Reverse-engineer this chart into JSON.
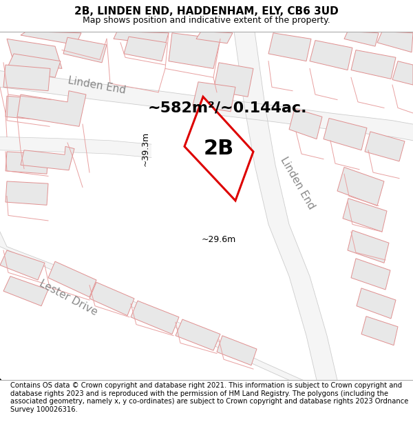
{
  "title_line1": "2B, LINDEN END, HADDENHAM, ELY, CB6 3UD",
  "title_line2": "Map shows position and indicative extent of the property.",
  "footer_text": "Contains OS data © Crown copyright and database right 2021. This information is subject to Crown copyright and database rights 2023 and is reproduced with the permission of HM Land Registry. The polygons (including the associated geometry, namely x, y co-ordinates) are subject to Crown copyright and database rights 2023 Ordnance Survey 100026316.",
  "area_label": "~582m²/~0.144ac.",
  "property_label": "2B",
  "dim_width": "~29.6m",
  "dim_height": "~39.3m",
  "map_bg": "#ffffff",
  "building_fill": "#e8e8e8",
  "building_edge": "#e09090",
  "road_fill": "#f5f5f5",
  "road_edge": "#cccccc",
  "road_line_color": "#e8a0a0",
  "property_outline_color": "#dd0000",
  "property_fill": "#ffffff",
  "dim_line_color": "#1a1a1a",
  "street_label_color": "#888888",
  "title_fontsize": 11,
  "subtitle_fontsize": 9,
  "footer_fontsize": 7.2,
  "area_label_fontsize": 16,
  "property_label_fontsize": 22,
  "street_label_fontsize": 11,
  "dim_fontsize": 9
}
